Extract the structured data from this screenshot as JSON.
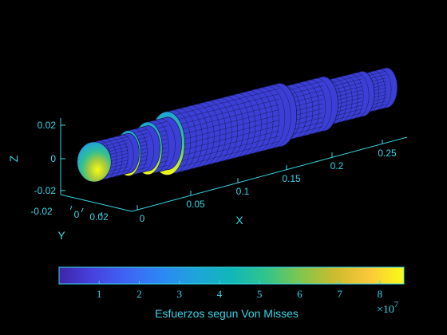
{
  "chart_data": {
    "type": "surface3d",
    "title": "",
    "axes": {
      "x": {
        "label": "X",
        "ticks": [
          "0",
          "0.05",
          "0.1",
          "0.15",
          "0.2",
          "0.25"
        ]
      },
      "y": {
        "label": "Y",
        "ticks": [
          "-0.02",
          "0",
          "0.02"
        ]
      },
      "z": {
        "label": "Z",
        "ticks": [
          "-0.02",
          "0",
          "0.02"
        ]
      }
    },
    "shaft_sections": [
      {
        "x_start": 0.0,
        "x_end": 0.035,
        "radius": 0.011
      },
      {
        "x_start": 0.035,
        "x_end": 0.055,
        "radius": 0.0125
      },
      {
        "x_start": 0.055,
        "x_end": 0.075,
        "radius": 0.0145
      },
      {
        "x_start": 0.075,
        "x_end": 0.19,
        "radius": 0.0175
      },
      {
        "x_start": 0.19,
        "x_end": 0.235,
        "radius": 0.015
      },
      {
        "x_start": 0.235,
        "x_end": 0.275,
        "radius": 0.0125
      },
      {
        "x_start": 0.275,
        "x_end": 0.3,
        "radius": 0.011
      }
    ],
    "colorbar": {
      "label": "Esfuerzos segun Von Misses",
      "ticks": [
        "1",
        "2",
        "3",
        "4",
        "5",
        "6",
        "7",
        "8"
      ],
      "multiplier_base": "×10",
      "multiplier_exp": "7",
      "range": [
        0,
        8.6
      ],
      "colormap": "parula"
    },
    "colors": {
      "background": "#000000",
      "axis": "#38d6e6",
      "surface": "#3b3fd6",
      "mesh": "#0d1030",
      "stress_low": "#3e26a8",
      "stress_high": "#f9fb15"
    }
  }
}
